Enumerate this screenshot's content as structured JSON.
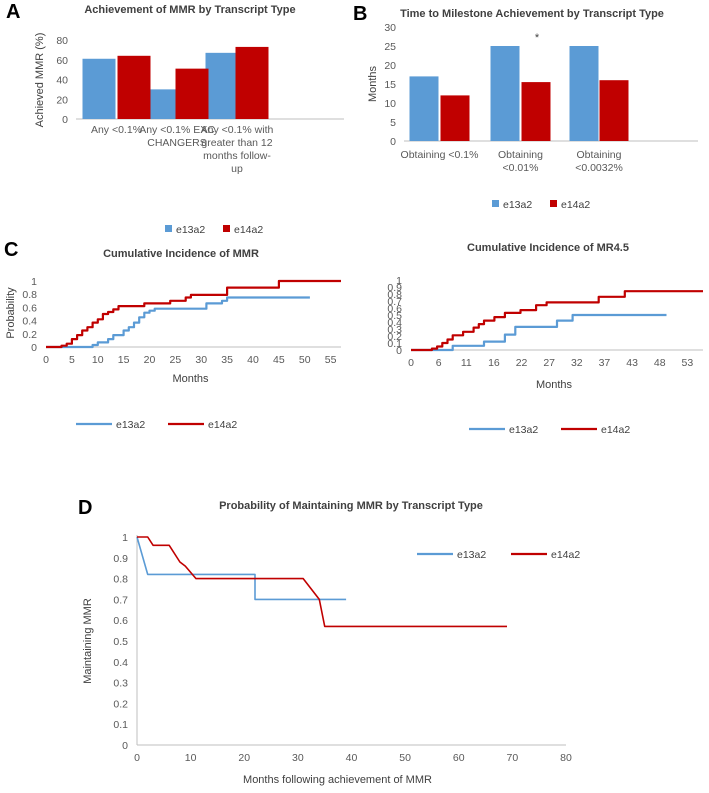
{
  "panels": {
    "a": "A",
    "b": "B",
    "c": "C",
    "d": "D"
  },
  "colors": {
    "e13a2": "#5b9bd5",
    "e14a2": "#c00000"
  },
  "chart_data": [
    {
      "id": "A",
      "type": "bar",
      "title": "Achievement of MMR by Transcript Type",
      "ylabel": "Achieved MMR (%)",
      "xlabel": "",
      "ylim": [
        0,
        80
      ],
      "yticks": [
        "0",
        "20",
        "40",
        "60",
        "80"
      ],
      "categories": [
        [
          "Any <0.1%"
        ],
        [
          "Any <0.1% EXC",
          "CHANGERS"
        ],
        [
          "Any <0.1% with",
          "greater than 12",
          "months follow-",
          "up"
        ]
      ],
      "series": [
        {
          "name": "e13a2",
          "values": [
            61,
            30,
            67
          ]
        },
        {
          "name": "e14a2",
          "values": [
            64,
            51,
            73
          ]
        }
      ],
      "legend": [
        "e13a2",
        "e14a2"
      ]
    },
    {
      "id": "B",
      "type": "bar",
      "title": "Time to Milestone Achievement by Transcript Type",
      "ylabel": "Months",
      "xlabel": "",
      "ylim": [
        0,
        30
      ],
      "yticks": [
        "0",
        "5",
        "10",
        "15",
        "20",
        "25",
        "30"
      ],
      "categories": [
        [
          "Obtaining <0.1%"
        ],
        [
          "Obtaining",
          "<0.01%"
        ],
        [
          "Obtaining",
          "<0.0032%"
        ]
      ],
      "series": [
        {
          "name": "e13a2",
          "values": [
            17,
            25,
            25
          ]
        },
        {
          "name": "e14a2",
          "values": [
            12,
            15.5,
            16
          ]
        }
      ],
      "annotation": "*",
      "legend": [
        "e13a2",
        "e14a2"
      ]
    },
    {
      "id": "C1",
      "type": "line",
      "title": "Cumulative Incidence of MMR",
      "ylabel": "Probability",
      "xlabel": "Months",
      "xlim": [
        0,
        57
      ],
      "ylim": [
        0,
        1
      ],
      "xticks": [
        "0",
        "5",
        "10",
        "15",
        "20",
        "25",
        "30",
        "35",
        "40",
        "45",
        "50",
        "55"
      ],
      "yticks": [
        "0",
        "0.2",
        "0.4",
        "0.6",
        "0.8",
        "1"
      ],
      "series": [
        {
          "name": "e13a2",
          "points": [
            [
              0,
              0
            ],
            [
              9,
              0
            ],
            [
              9,
              0.03
            ],
            [
              10,
              0.03
            ],
            [
              10,
              0.07
            ],
            [
              12,
              0.07
            ],
            [
              12,
              0.12
            ],
            [
              13,
              0.12
            ],
            [
              13,
              0.18
            ],
            [
              15,
              0.18
            ],
            [
              15,
              0.25
            ],
            [
              16,
              0.25
            ],
            [
              16,
              0.3
            ],
            [
              17,
              0.3
            ],
            [
              17,
              0.37
            ],
            [
              18,
              0.37
            ],
            [
              18,
              0.45
            ],
            [
              19,
              0.45
            ],
            [
              19,
              0.52
            ],
            [
              20,
              0.52
            ],
            [
              20,
              0.55
            ],
            [
              21,
              0.55
            ],
            [
              21,
              0.58
            ],
            [
              31,
              0.58
            ],
            [
              31,
              0.66
            ],
            [
              34,
              0.66
            ],
            [
              34,
              0.7
            ],
            [
              35,
              0.7
            ],
            [
              35,
              0.75
            ],
            [
              51,
              0.75
            ]
          ]
        },
        {
          "name": "e14a2",
          "points": [
            [
              0,
              0
            ],
            [
              3,
              0
            ],
            [
              3,
              0.02
            ],
            [
              4,
              0.02
            ],
            [
              4,
              0.05
            ],
            [
              5,
              0.05
            ],
            [
              5,
              0.12
            ],
            [
              6,
              0.12
            ],
            [
              6,
              0.18
            ],
            [
              7,
              0.18
            ],
            [
              7,
              0.25
            ],
            [
              8,
              0.25
            ],
            [
              8,
              0.3
            ],
            [
              9,
              0.3
            ],
            [
              9,
              0.37
            ],
            [
              10,
              0.37
            ],
            [
              10,
              0.42
            ],
            [
              11,
              0.42
            ],
            [
              11,
              0.5
            ],
            [
              12,
              0.5
            ],
            [
              12,
              0.53
            ],
            [
              13,
              0.53
            ],
            [
              13,
              0.57
            ],
            [
              14,
              0.57
            ],
            [
              14,
              0.62
            ],
            [
              19,
              0.62
            ],
            [
              19,
              0.66
            ],
            [
              24,
              0.66
            ],
            [
              24,
              0.7
            ],
            [
              27,
              0.7
            ],
            [
              27,
              0.75
            ],
            [
              28,
              0.75
            ],
            [
              28,
              0.79
            ],
            [
              35,
              0.79
            ],
            [
              35,
              0.9
            ],
            [
              45,
              0.9
            ],
            [
              45,
              1.0
            ],
            [
              57,
              1.0
            ]
          ]
        }
      ],
      "legend": [
        "e13a2",
        "e14a2"
      ]
    },
    {
      "id": "C2",
      "type": "line",
      "title": "Cumulative Incidence of MR4.5",
      "ylabel": "Probability",
      "xlabel": "Months",
      "xlim": [
        0,
        56
      ],
      "ylim": [
        0,
        1
      ],
      "xticks": [
        "0",
        "6",
        "11",
        "16",
        "22",
        "27",
        "32",
        "37",
        "43",
        "48",
        "53"
      ],
      "yticks": [
        "0",
        "0.1",
        "0.2",
        "0.3",
        "0.4",
        "0.5",
        "0.6",
        "0.7",
        "0.8",
        "0.9",
        "1"
      ],
      "series": [
        {
          "name": "e13a2",
          "points": [
            [
              0,
              0
            ],
            [
              8,
              0
            ],
            [
              8,
              0.06
            ],
            [
              14,
              0.06
            ],
            [
              14,
              0.12
            ],
            [
              18,
              0.12
            ],
            [
              18,
              0.22
            ],
            [
              20,
              0.22
            ],
            [
              20,
              0.33
            ],
            [
              28,
              0.33
            ],
            [
              28,
              0.42
            ],
            [
              31,
              0.42
            ],
            [
              31,
              0.5
            ],
            [
              49,
              0.5
            ]
          ]
        },
        {
          "name": "e14a2",
          "points": [
            [
              0,
              0
            ],
            [
              4,
              0
            ],
            [
              4,
              0.02
            ],
            [
              5,
              0.02
            ],
            [
              5,
              0.05
            ],
            [
              6,
              0.05
            ],
            [
              6,
              0.1
            ],
            [
              7,
              0.1
            ],
            [
              7,
              0.15
            ],
            [
              8,
              0.15
            ],
            [
              8,
              0.21
            ],
            [
              10,
              0.21
            ],
            [
              10,
              0.26
            ],
            [
              12,
              0.26
            ],
            [
              12,
              0.32
            ],
            [
              13,
              0.32
            ],
            [
              13,
              0.37
            ],
            [
              14,
              0.37
            ],
            [
              14,
              0.42
            ],
            [
              16,
              0.42
            ],
            [
              16,
              0.47
            ],
            [
              18,
              0.47
            ],
            [
              18,
              0.53
            ],
            [
              21,
              0.53
            ],
            [
              21,
              0.57
            ],
            [
              24,
              0.57
            ],
            [
              24,
              0.64
            ],
            [
              26,
              0.64
            ],
            [
              26,
              0.68
            ],
            [
              36,
              0.68
            ],
            [
              36,
              0.76
            ],
            [
              41,
              0.76
            ],
            [
              41,
              0.84
            ],
            [
              56,
              0.84
            ]
          ]
        }
      ],
      "legend": [
        "e13a2",
        "e14a2"
      ]
    },
    {
      "id": "D",
      "type": "line",
      "title": "Probability of Maintaining MMR by Transcript Type",
      "ylabel": "Maintaining MMR",
      "xlabel": "Months following achievement of MMR",
      "xlim": [
        0,
        80
      ],
      "ylim": [
        0,
        1
      ],
      "xticks": [
        "0",
        "10",
        "20",
        "30",
        "40",
        "50",
        "60",
        "70",
        "80"
      ],
      "yticks": [
        "0",
        "0.1",
        "0.2",
        "0.3",
        "0.4",
        "0.5",
        "0.6",
        "0.7",
        "0.8",
        "0.9",
        "1"
      ],
      "series": [
        {
          "name": "e13a2",
          "points": [
            [
              0,
              1
            ],
            [
              2,
              0.82
            ],
            [
              22,
              0.82
            ],
            [
              22,
              0.7
            ],
            [
              39,
              0.7
            ]
          ]
        },
        {
          "name": "e14a2",
          "points": [
            [
              0,
              1
            ],
            [
              2,
              1
            ],
            [
              3,
              0.96
            ],
            [
              6,
              0.96
            ],
            [
              8,
              0.88
            ],
            [
              9,
              0.86
            ],
            [
              11,
              0.8
            ],
            [
              31,
              0.8
            ],
            [
              34,
              0.7
            ],
            [
              35,
              0.57
            ],
            [
              69,
              0.57
            ]
          ]
        }
      ],
      "legend": [
        "e13a2",
        "e14a2"
      ]
    }
  ]
}
